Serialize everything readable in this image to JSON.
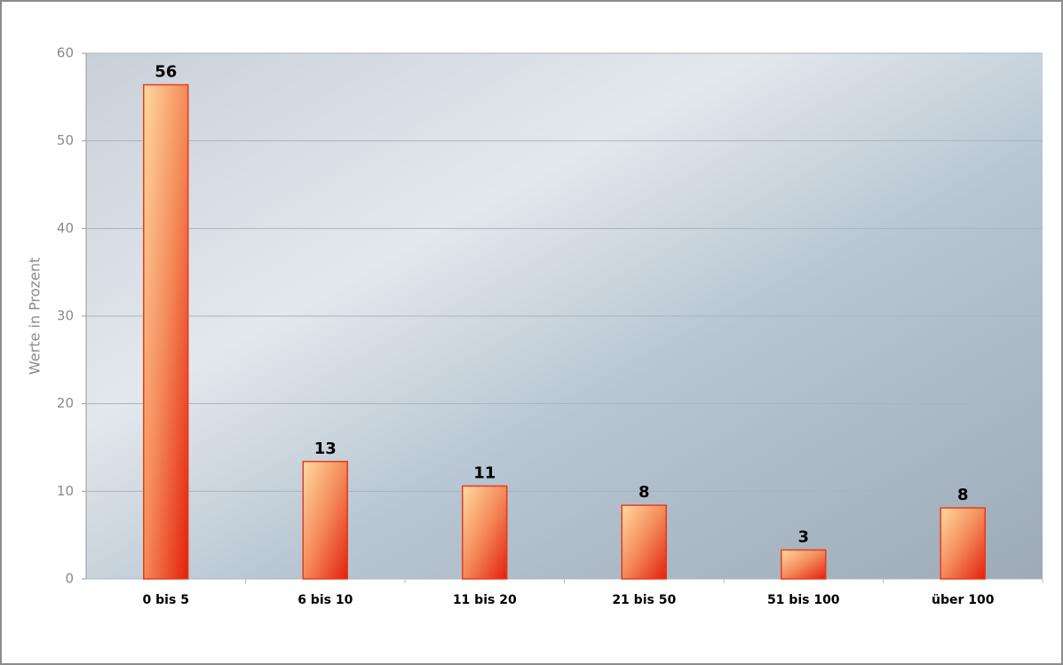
{
  "chart_data": {
    "type": "bar",
    "y_label": "Werte in Prozent",
    "categories": [
      "0 bis 5",
      "6 bis 10",
      "11 bis 20",
      "21 bis 50",
      "51 bis 100",
      "über 100"
    ],
    "values": [
      56.4,
      13.4,
      10.6,
      8.4,
      3.3,
      8.1
    ],
    "value_labels": [
      "56",
      "13",
      "11",
      "8",
      "3",
      "8"
    ],
    "color": "#e83a1c",
    "ylim": [
      0,
      60
    ],
    "yticks": [
      0,
      10,
      20,
      30,
      40,
      50,
      60
    ],
    "grid": true
  }
}
